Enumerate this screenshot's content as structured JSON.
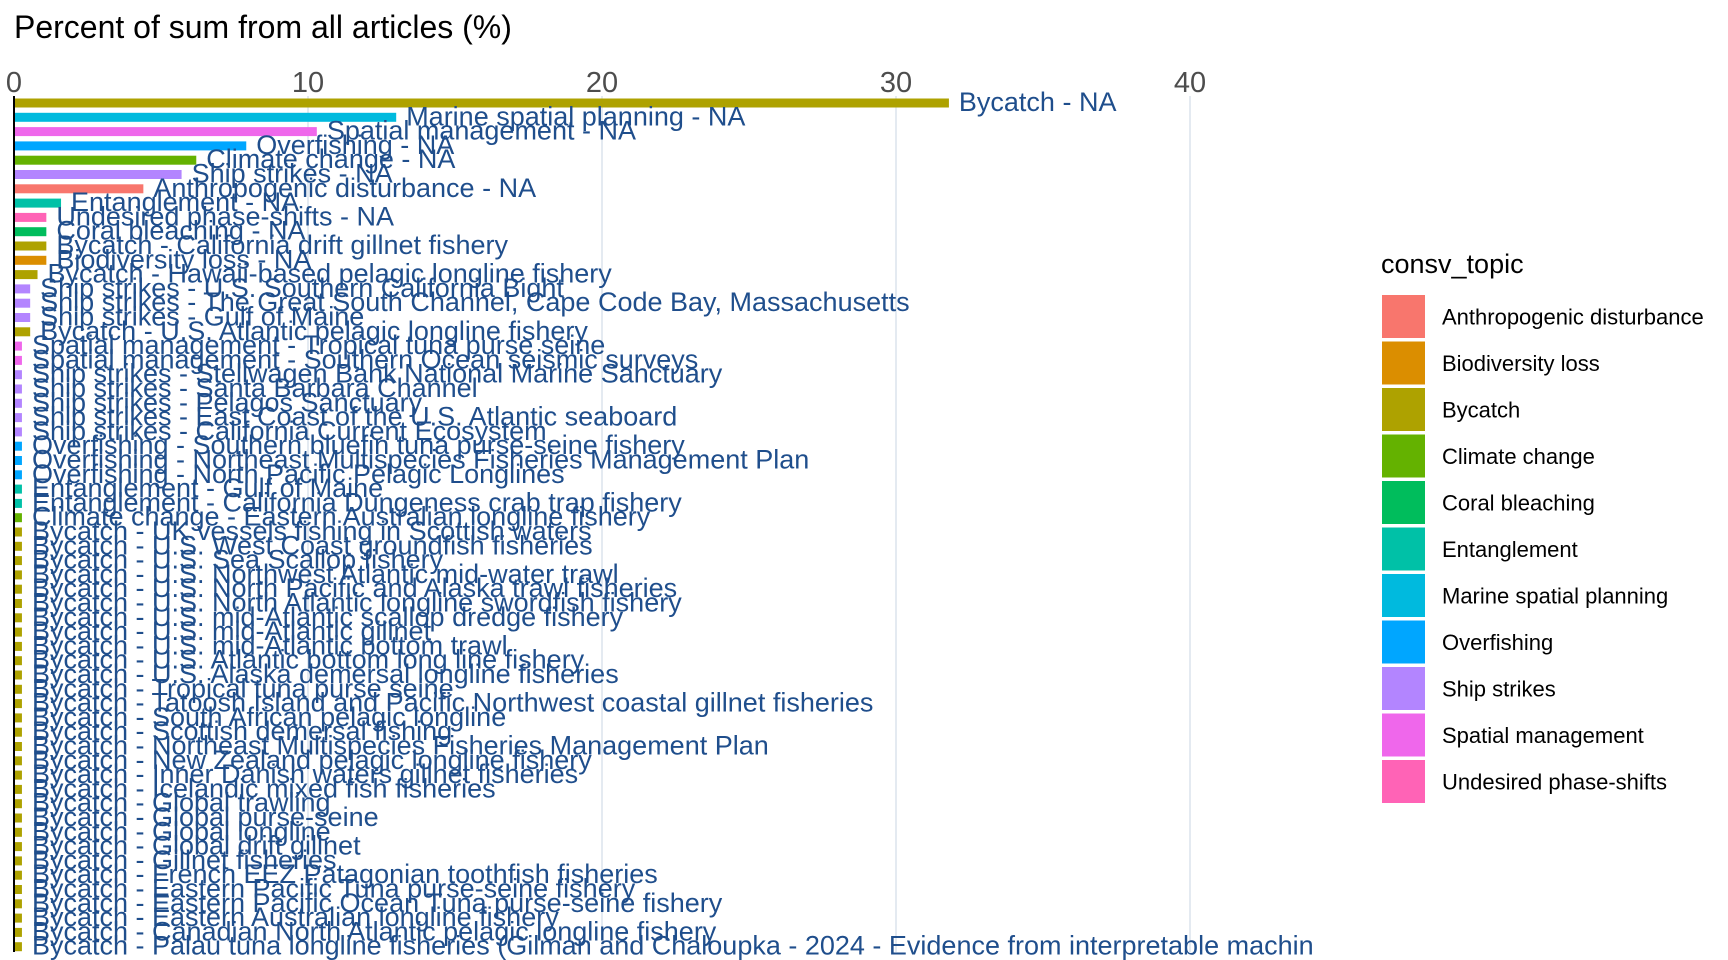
{
  "chart_data": {
    "type": "bar",
    "orientation": "horizontal",
    "xlabel": "Percent of sum from all articles (%)",
    "x_ticks": [
      0,
      10,
      20,
      30,
      40
    ],
    "xlim": [
      0,
      40
    ],
    "grid": true,
    "legend_title": "consv_topic",
    "legend_position": "right",
    "topics": [
      {
        "name": "Anthropogenic disturbance",
        "color": "#F8766D"
      },
      {
        "name": "Biodiversity loss",
        "color": "#DB8E00"
      },
      {
        "name": "Bycatch",
        "color": "#AEA200"
      },
      {
        "name": "Climate change",
        "color": "#64B200"
      },
      {
        "name": "Coral bleaching",
        "color": "#00BD5C"
      },
      {
        "name": "Entanglement",
        "color": "#00C1A7"
      },
      {
        "name": "Marine spatial planning",
        "color": "#00BADE"
      },
      {
        "name": "Overfishing",
        "color": "#00A6FF"
      },
      {
        "name": "Ship strikes",
        "color": "#B385FF"
      },
      {
        "name": "Spatial management",
        "color": "#EF67EB"
      },
      {
        "name": "Undesired phase-shifts",
        "color": "#FF63B6"
      }
    ],
    "bars": [
      {
        "label": "Bycatch - NA",
        "topic": "Bycatch",
        "value": 31.8
      },
      {
        "label": "Marine spatial planning - NA",
        "topic": "Marine spatial planning",
        "value": 13.0
      },
      {
        "label": "Spatial management - NA",
        "topic": "Spatial management",
        "value": 10.3
      },
      {
        "label": "Overfishing - NA",
        "topic": "Overfishing",
        "value": 7.9
      },
      {
        "label": "Climate change - NA",
        "topic": "Climate change",
        "value": 6.2
      },
      {
        "label": "Ship strikes - NA",
        "topic": "Ship strikes",
        "value": 5.7
      },
      {
        "label": "Anthropogenic disturbance - NA",
        "topic": "Anthropogenic disturbance",
        "value": 4.4
      },
      {
        "label": "Entanglement - NA",
        "topic": "Entanglement",
        "value": 1.6
      },
      {
        "label": "Undesired phase-shifts - NA",
        "topic": "Undesired phase-shifts",
        "value": 1.1
      },
      {
        "label": "Coral bleaching - NA",
        "topic": "Coral bleaching",
        "value": 1.1
      },
      {
        "label": "Bycatch - California drift gillnet fishery",
        "topic": "Bycatch",
        "value": 1.1
      },
      {
        "label": "Biodiversity loss - NA",
        "topic": "Biodiversity loss",
        "value": 1.1
      },
      {
        "label": "Bycatch - Hawaii-based pelagic longline fishery",
        "topic": "Bycatch",
        "value": 0.8
      },
      {
        "label": "Ship strikes - U.S. Southern California Bight",
        "topic": "Ship strikes",
        "value": 0.55
      },
      {
        "label": "Ship strikes - The Great South Channel, Cape Code Bay, Massachusetts",
        "topic": "Ship strikes",
        "value": 0.55
      },
      {
        "label": "Ship strikes - Gulf of Maine",
        "topic": "Ship strikes",
        "value": 0.55
      },
      {
        "label": "Bycatch - U.S. Atlantic pelagic longline fishery",
        "topic": "Bycatch",
        "value": 0.55
      },
      {
        "label": "Spatial management - Tropical tuna purse seine",
        "topic": "Spatial management",
        "value": 0.27
      },
      {
        "label": "Spatial management - Southern Ocean seismic surveys",
        "topic": "Spatial management",
        "value": 0.27
      },
      {
        "label": "Ship strikes - Stellwagen Bank National Marine Sanctuary",
        "topic": "Ship strikes",
        "value": 0.27
      },
      {
        "label": "Ship strikes - Santa Barbara Channel",
        "topic": "Ship strikes",
        "value": 0.27
      },
      {
        "label": "Ship strikes - Pelagos Sanctuary",
        "topic": "Ship strikes",
        "value": 0.27
      },
      {
        "label": "Ship strikes - East Coast of the U.S. Atlantic seaboard",
        "topic": "Ship strikes",
        "value": 0.27
      },
      {
        "label": "Ship strikes - California Current Ecosystem",
        "topic": "Ship strikes",
        "value": 0.27
      },
      {
        "label": "Overfishing - Southern bluefin tuna purse-seine fishery",
        "topic": "Overfishing",
        "value": 0.27
      },
      {
        "label": "Overfishing - Northeast Multispecies Fisheries Management Plan",
        "topic": "Overfishing",
        "value": 0.27
      },
      {
        "label": "Overfishing - North Pacific Pelagic Longlines",
        "topic": "Overfishing",
        "value": 0.27
      },
      {
        "label": "Entanglement - Gulf of Maine",
        "topic": "Entanglement",
        "value": 0.27
      },
      {
        "label": "Entanglement - California Dungeness crab trap fishery",
        "topic": "Entanglement",
        "value": 0.27
      },
      {
        "label": "Climate change - Eastern Australian longline fishery",
        "topic": "Climate change",
        "value": 0.27
      },
      {
        "label": "Bycatch - UK vessels fishing in Scottish waters",
        "topic": "Bycatch",
        "value": 0.27
      },
      {
        "label": "Bycatch - U.S. West Coast groundfish fisheries",
        "topic": "Bycatch",
        "value": 0.27
      },
      {
        "label": "Bycatch - U.S. Sea Scallop fishery",
        "topic": "Bycatch",
        "value": 0.27
      },
      {
        "label": "Bycatch - U.S. Northwest Atlantic mid-water trawl",
        "topic": "Bycatch",
        "value": 0.27
      },
      {
        "label": "Bycatch - U.S. North Pacific and Alaska trawl fisheries",
        "topic": "Bycatch",
        "value": 0.27
      },
      {
        "label": "Bycatch - U.S. North Atlantic longline swordfish fishery",
        "topic": "Bycatch",
        "value": 0.27
      },
      {
        "label": "Bycatch - U.S. mid-Atlantic scallop dredge fishery",
        "topic": "Bycatch",
        "value": 0.27
      },
      {
        "label": "Bycatch - U.S. mid-Atlantic gillnet",
        "topic": "Bycatch",
        "value": 0.27
      },
      {
        "label": "Bycatch - U.S. mid-Atlantic bottom trawl",
        "topic": "Bycatch",
        "value": 0.27
      },
      {
        "label": "Bycatch - U.S. Atlantic bottom long line fishery",
        "topic": "Bycatch",
        "value": 0.27
      },
      {
        "label": "Bycatch - U.S. Alaska demersal longline fisheries",
        "topic": "Bycatch",
        "value": 0.27
      },
      {
        "label": "Bycatch - Tropical tuna purse seine",
        "topic": "Bycatch",
        "value": 0.27
      },
      {
        "label": "Bycatch - Tatoosh Island and Pacific Northwest coastal gillnet fisheries",
        "topic": "Bycatch",
        "value": 0.27
      },
      {
        "label": "Bycatch - South African pelagic longline",
        "topic": "Bycatch",
        "value": 0.27
      },
      {
        "label": "Bycatch - Scottish demersal fishing",
        "topic": "Bycatch",
        "value": 0.27
      },
      {
        "label": "Bycatch - Northeast Multispecies Fisheries Management Plan",
        "topic": "Bycatch",
        "value": 0.27
      },
      {
        "label": "Bycatch - New Zealand pelagic longline fishery",
        "topic": "Bycatch",
        "value": 0.27
      },
      {
        "label": "Bycatch - Inner Danish waters gillnet fisheries",
        "topic": "Bycatch",
        "value": 0.27
      },
      {
        "label": "Bycatch - Icelandic mixed fish fisheries",
        "topic": "Bycatch",
        "value": 0.27
      },
      {
        "label": "Bycatch - Global trawling",
        "topic": "Bycatch",
        "value": 0.27
      },
      {
        "label": "Bycatch - Global purse-seine",
        "topic": "Bycatch",
        "value": 0.27
      },
      {
        "label": "Bycatch - Global longline",
        "topic": "Bycatch",
        "value": 0.27
      },
      {
        "label": "Bycatch - Global drift gillnet",
        "topic": "Bycatch",
        "value": 0.27
      },
      {
        "label": "Bycatch - Gillnet fisheries",
        "topic": "Bycatch",
        "value": 0.27
      },
      {
        "label": "Bycatch - French EEZ Patagonian toothfish fisheries",
        "topic": "Bycatch",
        "value": 0.27
      },
      {
        "label": "Bycatch - Eastern Pacific Tuna purse-seine fishery",
        "topic": "Bycatch",
        "value": 0.27
      },
      {
        "label": "Bycatch - Eastern Pacific Ocean Tuna purse-seine fishery",
        "topic": "Bycatch",
        "value": 0.27
      },
      {
        "label": "Bycatch - Eastern Australian longline fishery",
        "topic": "Bycatch",
        "value": 0.27
      },
      {
        "label": "Bycatch - Canadian North Atlantic pelagic longline fishery",
        "topic": "Bycatch",
        "value": 0.27
      },
      {
        "label": "Bycatch - Palau tuna longline fisheries (Gilman and Chaloupka - 2024 - Evidence from interpretable machin",
        "topic": "Bycatch",
        "value": 0.27
      }
    ]
  }
}
